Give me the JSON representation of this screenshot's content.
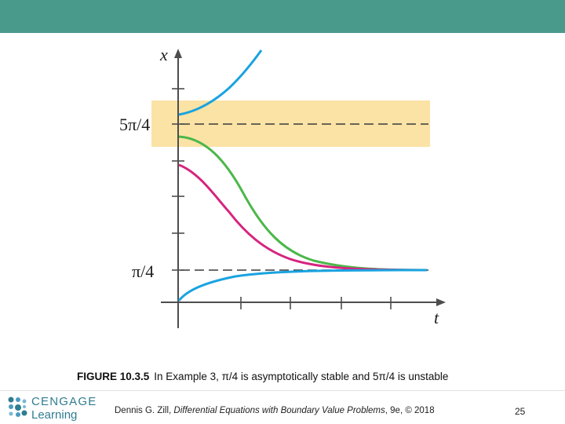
{
  "colors": {
    "header_bar": "#4a9a8c",
    "stable_band": "#fbe3a5",
    "curve_top_blue": "#1aa3e0",
    "curve_green": "#4cb74a",
    "curve_magenta": "#d6247f",
    "curve_bottom_blue": "#1aa3e0",
    "axis": "#4d4d4d",
    "logo": "#2f7d8f"
  },
  "figure": {
    "x_axis_label": "t",
    "y_axis_label": "x",
    "upper_equilibrium_label": "5π/4",
    "lower_equilibrium_label": "π/4",
    "highlighted_band": "upper equilibrium 5π/4"
  },
  "caption": {
    "label": "FIGURE 10.3.5",
    "text": "In Example 3, π/4 is asymptotically stable and 5π/4 is unstable"
  },
  "footer": {
    "logo_top": "CENGAGE",
    "logo_bottom": "Learning",
    "logo_icon": "cengage-dot-logo-icon",
    "citation_author": "Dennis G. Zill, ",
    "citation_title": "Differential Equations with Boundary Value Problems",
    "citation_rest": ", 9e, © 2018",
    "page_number": "25"
  }
}
